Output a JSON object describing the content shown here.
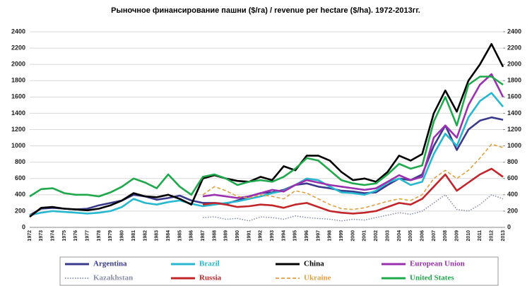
{
  "chart_data": {
    "type": "line",
    "title": "Рыночное финансирование пашни ($/га) / revenue per hectare ($/ha). 1972-2013гг.",
    "categories": [
      "1972",
      "1973",
      "1974",
      "1975",
      "1976",
      "1977",
      "1978",
      "1979",
      "1980",
      "1981",
      "1982",
      "1983",
      "1984",
      "1985",
      "1986",
      "1987",
      "1988",
      "1989",
      "1990",
      "1991",
      "1992",
      "1993",
      "1994",
      "1995",
      "1996",
      "1997",
      "1998",
      "1999",
      "2000",
      "2001",
      "2002",
      "2003",
      "2004",
      "2005",
      "2006",
      "2007",
      "2008",
      "2009",
      "2010",
      "2011",
      "2012",
      "2013"
    ],
    "ylim": [
      0,
      2400
    ],
    "yticks": [
      0,
      200,
      400,
      600,
      800,
      1000,
      1200,
      1400,
      1600,
      1800,
      2000,
      2200,
      2400
    ],
    "y2lim": [
      0,
      2400
    ],
    "y2ticks": [
      0,
      200,
      400,
      600,
      800,
      1000,
      1200,
      1400,
      1600,
      1800,
      2000,
      2200,
      2400
    ],
    "grid": true,
    "series": [
      {
        "name": "Argentina",
        "color": "#3a3a8c",
        "line_style": "solid",
        "values": [
          150,
          230,
          240,
          230,
          220,
          230,
          270,
          300,
          330,
          400,
          380,
          340,
          360,
          390,
          330,
          300,
          300,
          290,
          330,
          380,
          420,
          430,
          460,
          520,
          540,
          500,
          480,
          450,
          440,
          420,
          430,
          520,
          600,
          580,
          650,
          1000,
          1250,
          950,
          1200,
          1310,
          1350,
          1320
        ]
      },
      {
        "name": "Brazil",
        "color": "#27b8d0",
        "line_style": "solid",
        "values": [
          150,
          180,
          200,
          190,
          180,
          170,
          180,
          200,
          250,
          350,
          300,
          280,
          310,
          330,
          290,
          260,
          280,
          300,
          320,
          350,
          380,
          420,
          450,
          520,
          600,
          580,
          500,
          430,
          420,
          400,
          450,
          550,
          600,
          520,
          560,
          900,
          1150,
          1000,
          1350,
          1550,
          1650,
          1480
        ]
      },
      {
        "name": "China",
        "color": "#000000",
        "line_style": "solid",
        "values": [
          130,
          240,
          250,
          230,
          220,
          210,
          230,
          270,
          330,
          420,
          380,
          370,
          400,
          350,
          280,
          600,
          640,
          600,
          570,
          560,
          620,
          580,
          750,
          700,
          880,
          880,
          820,
          680,
          580,
          600,
          560,
          680,
          880,
          820,
          900,
          1400,
          1680,
          1420,
          1800,
          2000,
          2250,
          1970
        ]
      },
      {
        "name": "European Union",
        "color": "#9b30b0",
        "line_style": "solid",
        "values": [
          null,
          null,
          null,
          null,
          null,
          null,
          null,
          null,
          null,
          null,
          null,
          null,
          null,
          null,
          null,
          380,
          400,
          380,
          360,
          380,
          420,
          460,
          440,
          520,
          580,
          550,
          520,
          500,
          480,
          460,
          480,
          560,
          640,
          580,
          620,
          1100,
          1250,
          1100,
          1500,
          1750,
          1880,
          1600
        ]
      },
      {
        "name": "Kazakhstan",
        "color": "#8a8fa8",
        "line_style": "dotted",
        "values": [
          null,
          null,
          null,
          null,
          null,
          null,
          null,
          null,
          null,
          null,
          null,
          null,
          null,
          null,
          null,
          120,
          130,
          100,
          110,
          80,
          130,
          120,
          100,
          140,
          120,
          110,
          100,
          80,
          100,
          90,
          120,
          150,
          180,
          160,
          200,
          300,
          400,
          220,
          200,
          280,
          400,
          350
        ]
      },
      {
        "name": "Russia",
        "color": "#c0262a",
        "line_style": "solid",
        "values": [
          null,
          null,
          null,
          null,
          null,
          null,
          null,
          null,
          null,
          null,
          null,
          null,
          null,
          null,
          null,
          280,
          300,
          280,
          250,
          260,
          280,
          270,
          240,
          280,
          300,
          250,
          200,
          180,
          170,
          180,
          200,
          250,
          300,
          280,
          350,
          500,
          650,
          450,
          550,
          650,
          720,
          620
        ]
      },
      {
        "name": "Ukraine",
        "color": "#e0a040",
        "line_style": "dashed",
        "values": [
          null,
          null,
          null,
          null,
          null,
          null,
          null,
          null,
          null,
          null,
          null,
          null,
          null,
          null,
          null,
          400,
          500,
          450,
          380,
          360,
          400,
          380,
          350,
          450,
          420,
          350,
          280,
          230,
          220,
          240,
          280,
          320,
          350,
          330,
          400,
          600,
          700,
          600,
          700,
          850,
          1020,
          980
        ]
      },
      {
        "name": "United States",
        "color": "#1fa84c",
        "line_style": "solid",
        "values": [
          380,
          470,
          480,
          420,
          400,
          400,
          380,
          430,
          500,
          600,
          550,
          480,
          650,
          500,
          400,
          620,
          650,
          600,
          520,
          560,
          580,
          560,
          620,
          720,
          850,
          820,
          700,
          580,
          540,
          520,
          540,
          650,
          780,
          720,
          760,
          1300,
          1600,
          1250,
          1750,
          1850,
          1850,
          1750
        ]
      }
    ]
  }
}
